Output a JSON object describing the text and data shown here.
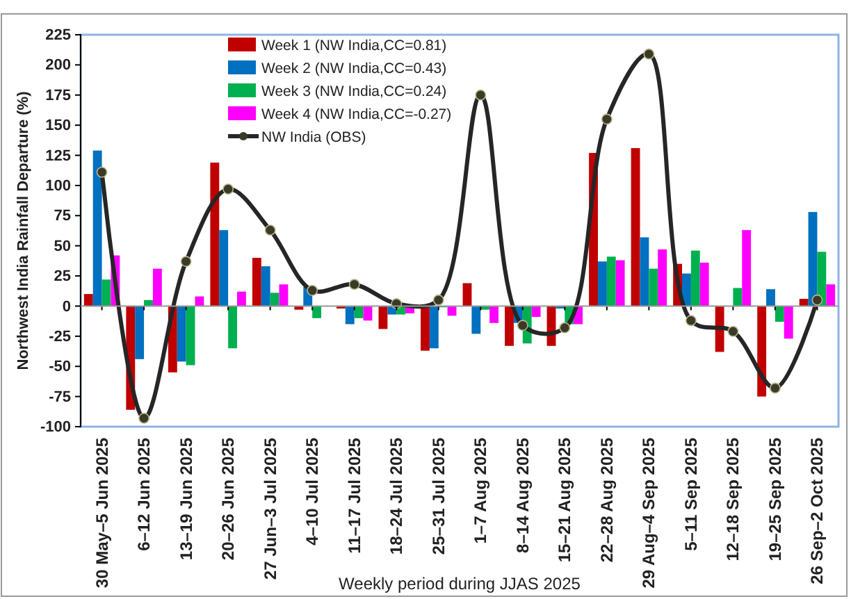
{
  "chart_data": {
    "type": "bar",
    "xlabel": "Weekly period during JJAS 2025",
    "ylabel": "Northwest India Rainfall Departure (%)",
    "categories": [
      "30 May–5 Jun 2025",
      "6–12 Jun 2025",
      "13–19 Jun 2025",
      "20–26 Jun 2025",
      "27 Jun–3 Jul 2025",
      "4–10 Jul 2025",
      "11–17 Jul 2025",
      "18–24 Jul 2025",
      "25–31 Jul 2025",
      "1–7 Aug 2025",
      "8–14 Aug 2025",
      "15–21 Aug 2025",
      "22–28 Aug 2025",
      "29 Aug–4 Sep 2025",
      "5–11 Sep 2025",
      "12–18 Sep 2025",
      "19–25 Sep 2025",
      "26 Sep–2 Oct 2025"
    ],
    "series": [
      {
        "name": "Week 1 (NW India,CC=0.81)",
        "color": "#c00000",
        "values": [
          10,
          -86,
          -55,
          119,
          40,
          -3,
          -2,
          -19,
          -37,
          19,
          -33,
          -33,
          127,
          131,
          35,
          -38,
          -75,
          6
        ]
      },
      {
        "name": "Week 2 (NW India,CC=0.43)",
        "color": "#0070c0",
        "values": [
          129,
          -44,
          -46,
          63,
          33,
          16,
          -15,
          -7,
          -35,
          -23,
          -14,
          -2,
          37,
          57,
          27,
          0,
          14,
          78
        ]
      },
      {
        "name": "Week 3 (NW India,CC=0.24)",
        "color": "#00b050",
        "values": [
          22,
          5,
          -49,
          -35,
          11,
          -10,
          -10,
          -7,
          -1,
          -3,
          -31,
          -15,
          41,
          31,
          46,
          15,
          -13,
          45
        ]
      },
      {
        "name": "Week 4 (NW India,CC=-0.27)",
        "color": "#ff00ff",
        "values": [
          42,
          31,
          8,
          12,
          18,
          0,
          -12,
          -6,
          -8,
          -14,
          -9,
          -15,
          38,
          47,
          36,
          63,
          -27,
          18
        ]
      },
      {
        "name": "NW India (OBS)",
        "type": "line",
        "color": "#262626",
        "marker": "circle",
        "values": [
          111,
          -93,
          37,
          97,
          63,
          13,
          18,
          2,
          5,
          175,
          -16,
          -18,
          155,
          209,
          -12,
          -21,
          -68,
          5
        ]
      }
    ],
    "ylim": [
      -100,
      225
    ],
    "yticks": [
      -100,
      -75,
      -50,
      -25,
      0,
      25,
      50,
      75,
      100,
      125,
      150,
      175,
      200,
      225
    ],
    "ref_lines": [
      {
        "axis": "y",
        "value": 0,
        "color": "#999999"
      }
    ],
    "grid": false,
    "legend": "top left"
  }
}
